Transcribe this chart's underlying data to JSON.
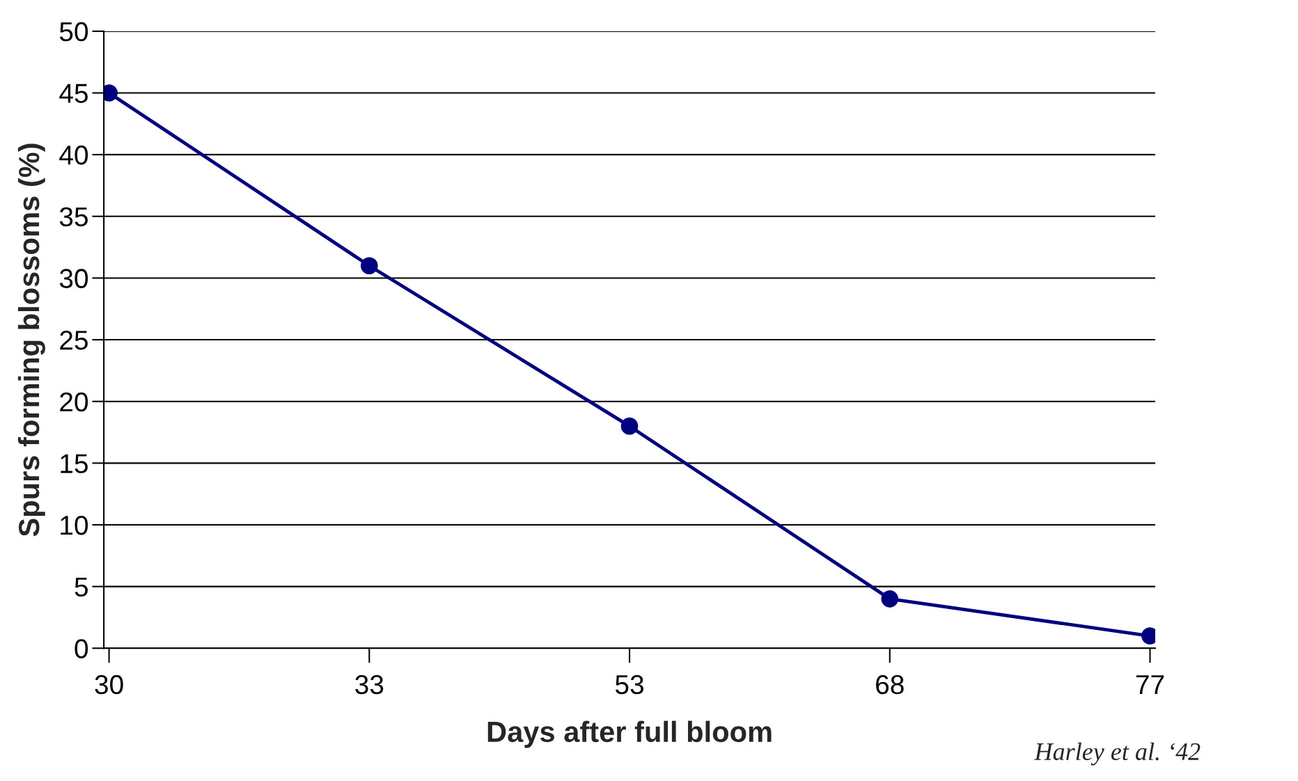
{
  "chart_data": {
    "type": "line",
    "xlabel": "Days after full bloom",
    "ylabel": "Spurs forming blossoms (%)",
    "categories": [
      "30",
      "33",
      "53",
      "68",
      "77"
    ],
    "series": [
      {
        "color": "#000080",
        "values": [
          45,
          31,
          18,
          4,
          1
        ]
      }
    ],
    "ylim": [
      0,
      50
    ],
    "yticks": [
      0,
      5,
      10,
      15,
      20,
      25,
      30,
      35,
      40,
      45,
      50
    ],
    "grid": "y",
    "marker": "circle",
    "line_style": "solid",
    "annotations": [
      "Harley et al. ‘42"
    ]
  }
}
